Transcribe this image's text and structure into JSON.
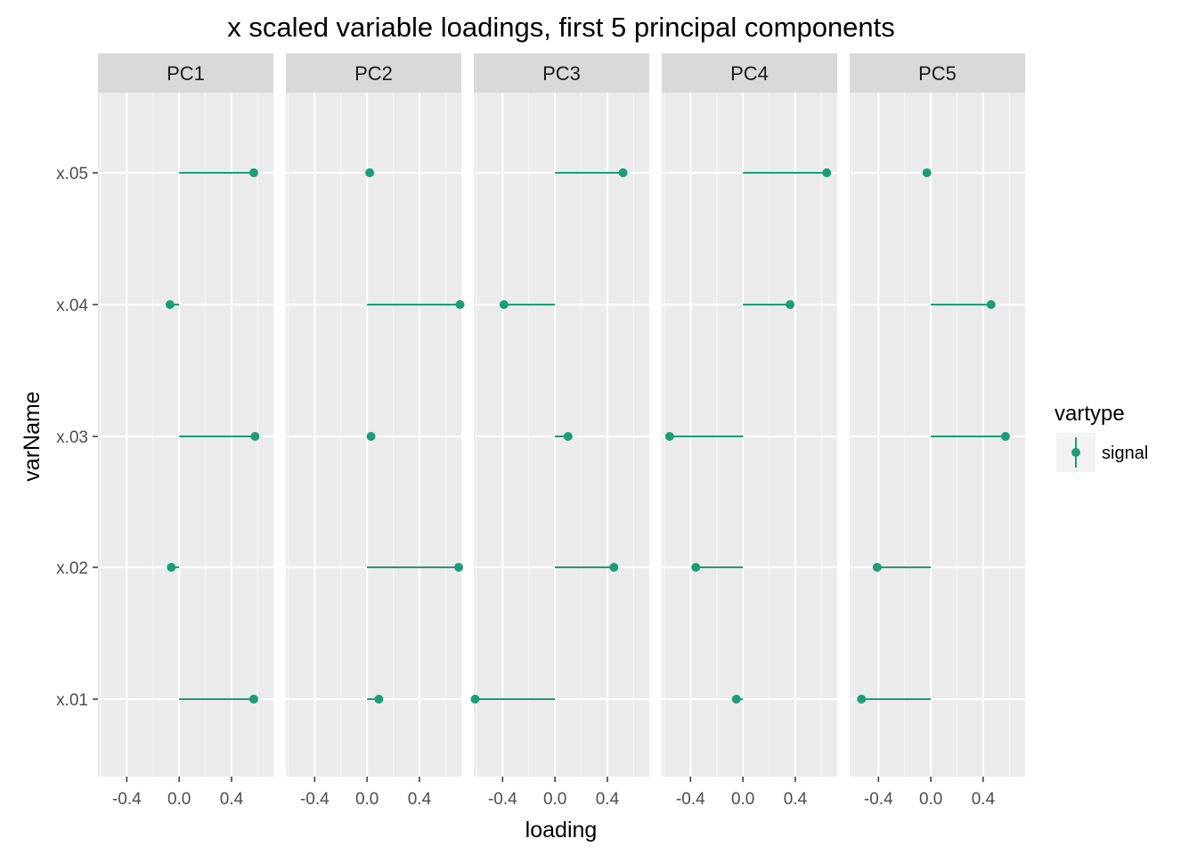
{
  "chart_data": {
    "type": "scatter",
    "title": "x scaled variable loadings, first 5 principal components",
    "xlabel": "loading",
    "ylabel": "varName",
    "xlim": [
      -0.62,
      0.72
    ],
    "x_ticks": [
      -0.4,
      0.0,
      0.4
    ],
    "x_tick_labels": [
      "-0.4",
      "0.0",
      "0.4"
    ],
    "y_categories": [
      "x.01",
      "x.02",
      "x.03",
      "x.04",
      "x.05"
    ],
    "grid": true,
    "legend": {
      "title": "vartype",
      "placement": "right",
      "entries": [
        {
          "label": "signal",
          "color": "#1b9e77"
        }
      ]
    },
    "series_color": "#1b9e77",
    "panels": [
      {
        "name": "PC1",
        "values": {
          "x.01": 0.57,
          "x.02": -0.06,
          "x.03": 0.58,
          "x.04": -0.07,
          "x.05": 0.57
        }
      },
      {
        "name": "PC2",
        "values": {
          "x.01": 0.09,
          "x.02": 0.7,
          "x.03": 0.03,
          "x.04": 0.71,
          "x.05": 0.02
        }
      },
      {
        "name": "PC3",
        "values": {
          "x.01": -0.61,
          "x.02": 0.45,
          "x.03": 0.1,
          "x.04": -0.39,
          "x.05": 0.52
        }
      },
      {
        "name": "PC4",
        "values": {
          "x.01": -0.05,
          "x.02": -0.36,
          "x.03": -0.56,
          "x.04": 0.36,
          "x.05": 0.64
        }
      },
      {
        "name": "PC5",
        "values": {
          "x.01": -0.53,
          "x.02": -0.41,
          "x.03": 0.57,
          "x.04": 0.46,
          "x.05": -0.03
        }
      }
    ]
  }
}
